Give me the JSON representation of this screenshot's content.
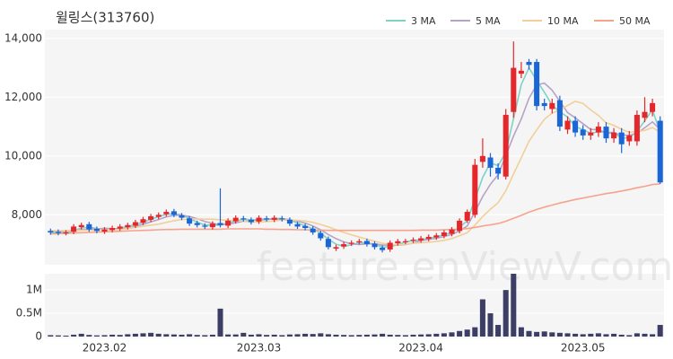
{
  "chart_data": [
    {
      "type": "candlestick",
      "title": "윌링스(313760)",
      "watermark": "feature.enViewV.com",
      "open": [
        7450,
        7420,
        7380,
        7420,
        7580,
        7680,
        7520,
        7430,
        7480,
        7530,
        7580,
        7630,
        7730,
        7830,
        7930,
        8020,
        8120,
        7980,
        7880,
        7720,
        7630,
        7580,
        7720,
        7630,
        7780,
        7880,
        7830,
        7770,
        7880,
        7830,
        7880,
        7830,
        7680,
        7620,
        7530,
        7380,
        7180,
        6850,
        6920,
        7020,
        7070,
        7110,
        7020,
        6880,
        6820,
        7030,
        7080,
        7120,
        7130,
        7180,
        7230,
        7280,
        7350,
        7450,
        7800,
        8000,
        9800,
        9950,
        9600,
        9300,
        11500,
        12800,
        13200,
        13200,
        11800,
        11600,
        11900,
        10900,
        11200,
        10900,
        10700,
        10800,
        11000,
        10600,
        10800,
        10500,
        10500,
        11300,
        11500,
        11200
      ],
      "high": [
        7530,
        7500,
        7480,
        7680,
        7730,
        7760,
        7600,
        7580,
        7630,
        7680,
        7730,
        7830,
        7930,
        8030,
        8080,
        8180,
        8200,
        8060,
        7960,
        7800,
        7710,
        7780,
        8900,
        7880,
        7980,
        7960,
        7910,
        7980,
        7960,
        7980,
        7960,
        7910,
        7760,
        7700,
        7610,
        7460,
        7260,
        6980,
        7080,
        7130,
        7180,
        7190,
        7100,
        6960,
        7130,
        7180,
        7180,
        7230,
        7280,
        7330,
        7380,
        7480,
        7580,
        7880,
        8180,
        9900,
        10600,
        10100,
        9750,
        11600,
        13900,
        13200,
        13300,
        13300,
        11950,
        11950,
        12050,
        11350,
        11350,
        11050,
        10950,
        11150,
        11150,
        10950,
        10950,
        10850,
        11550,
        12000,
        11950,
        11350
      ],
      "low": [
        7320,
        7300,
        7300,
        7340,
        7500,
        7420,
        7370,
        7350,
        7400,
        7450,
        7500,
        7550,
        7650,
        7750,
        7850,
        7940,
        7920,
        7820,
        7620,
        7570,
        7520,
        7500,
        7570,
        7550,
        7700,
        7770,
        7670,
        7690,
        7770,
        7750,
        7770,
        7620,
        7520,
        7470,
        7320,
        7120,
        6820,
        6770,
        6840,
        6940,
        6990,
        6920,
        6820,
        6720,
        6740,
        6950,
        7000,
        7040,
        7050,
        7100,
        7150,
        7200,
        7270,
        7370,
        7720,
        7900,
        9600,
        9300,
        9200,
        9200,
        11300,
        12650,
        12950,
        11550,
        11550,
        11450,
        10850,
        10750,
        10650,
        10550,
        10550,
        10650,
        10450,
        10450,
        10100,
        10350,
        10350,
        11150,
        11350,
        9050
      ],
      "close": [
        7400,
        7380,
        7400,
        7600,
        7650,
        7500,
        7450,
        7500,
        7550,
        7600,
        7650,
        7750,
        7850,
        7950,
        8000,
        8100,
        8000,
        7900,
        7700,
        7650,
        7600,
        7700,
        7650,
        7800,
        7900,
        7850,
        7750,
        7900,
        7850,
        7900,
        7850,
        7700,
        7600,
        7550,
        7400,
        7200,
        6900,
        6900,
        7000,
        7050,
        7100,
        7000,
        6900,
        6800,
        7050,
        7100,
        7100,
        7150,
        7200,
        7250,
        7300,
        7400,
        7500,
        7800,
        8100,
        9700,
        10000,
        9600,
        9400,
        11400,
        13000,
        12900,
        13100,
        11700,
        11700,
        11800,
        11000,
        11200,
        10800,
        10700,
        10800,
        11000,
        10600,
        10800,
        10400,
        10700,
        11400,
        11500,
        11800,
        9100
      ],
      "up_color": "#e5262b",
      "down_color": "#1a66d6",
      "series": [
        {
          "name": "3 MA",
          "color": "#7dd3c8",
          "values": [
            7400,
            7390,
            7390,
            7460,
            7550,
            7580,
            7530,
            7480,
            7500,
            7550,
            7600,
            7670,
            7750,
            7850,
            7930,
            8020,
            8030,
            8000,
            7870,
            7750,
            7650,
            7650,
            7650,
            7720,
            7780,
            7850,
            7830,
            7830,
            7830,
            7880,
            7870,
            7820,
            7720,
            7620,
            7520,
            7380,
            7170,
            7000,
            6930,
            6980,
            7050,
            7050,
            7000,
            6900,
            6920,
            6980,
            7080,
            7120,
            7150,
            7200,
            7250,
            7320,
            7400,
            7570,
            7800,
            8530,
            9270,
            9770,
            9670,
            10130,
            11270,
            12430,
            13000,
            12570,
            12170,
            11730,
            11500,
            11330,
            11000,
            10900,
            10770,
            10830,
            10800,
            10800,
            10600,
            10630,
            10830,
            11200,
            11570,
            10800
          ]
        },
        {
          "name": "5 MA",
          "color": "#b5a3c8",
          "values": [
            7450,
            7440,
            7440,
            7460,
            7490,
            7510,
            7520,
            7540,
            7530,
            7520,
            7550,
            7610,
            7680,
            7760,
            7840,
            7930,
            7980,
            7990,
            7940,
            7870,
            7770,
            7710,
            7660,
            7680,
            7730,
            7780,
            7790,
            7840,
            7850,
            7850,
            7850,
            7840,
            7780,
            7720,
            7620,
            7490,
            7330,
            7190,
            7080,
            7010,
            6990,
            7010,
            7010,
            6970,
            6970,
            6970,
            6990,
            7040,
            7120,
            7160,
            7200,
            7260,
            7330,
            7450,
            7620,
            8100,
            8620,
            9040,
            9360,
            10020,
            10680,
            11260,
            11960,
            12420,
            12480,
            12240,
            11860,
            11480,
            11300,
            11100,
            10900,
            10900,
            10780,
            10780,
            10720,
            10700,
            10780,
            10960,
            11160,
            10900
          ]
        },
        {
          "name": "10 MA",
          "color": "#f2cf98",
          "values": [
            7460,
            7460,
            7460,
            7470,
            7470,
            7480,
            7480,
            7490,
            7490,
            7500,
            7530,
            7570,
            7610,
            7650,
            7680,
            7740,
            7800,
            7840,
            7850,
            7860,
            7850,
            7850,
            7830,
            7810,
            7800,
            7780,
            7750,
            7750,
            7770,
            7790,
            7820,
            7820,
            7810,
            7790,
            7740,
            7670,
            7590,
            7490,
            7400,
            7320,
            7240,
            7170,
            7100,
            7030,
            6990,
            6980,
            7000,
            7030,
            7050,
            7070,
            7090,
            7130,
            7190,
            7290,
            7390,
            7650,
            7940,
            8190,
            8410,
            8820,
            9390,
            9940,
            10500,
            10890,
            11250,
            11460,
            11560,
            11720,
            11860,
            11790,
            11570,
            11380,
            11130,
            11040,
            10910,
            10800,
            10840,
            10870,
            10970,
            10810
          ]
        },
        {
          "name": "50 MA",
          "color": "#f5a38d",
          "values": [
            7350,
            7360,
            7370,
            7380,
            7390,
            7400,
            7410,
            7420,
            7430,
            7440,
            7450,
            7460,
            7470,
            7480,
            7490,
            7500,
            7500,
            7510,
            7510,
            7510,
            7510,
            7510,
            7510,
            7520,
            7520,
            7520,
            7520,
            7520,
            7510,
            7510,
            7500,
            7500,
            7490,
            7490,
            7480,
            7480,
            7470,
            7470,
            7470,
            7470,
            7470,
            7470,
            7470,
            7470,
            7470,
            7470,
            7470,
            7470,
            7480,
            7480,
            7480,
            7490,
            7500,
            7510,
            7530,
            7570,
            7620,
            7660,
            7700,
            7780,
            7880,
            7980,
            8090,
            8180,
            8260,
            8330,
            8400,
            8460,
            8520,
            8570,
            8620,
            8670,
            8720,
            8760,
            8810,
            8860,
            8920,
            8970,
            9030,
            9050
          ]
        }
      ],
      "ylim": [
        6300,
        14300
      ],
      "yticks": [
        {
          "value": 8000,
          "label": "8,000"
        },
        {
          "value": 10000,
          "label": "10,000"
        },
        {
          "value": 12000,
          "label": "12,000"
        },
        {
          "value": 14000,
          "label": "14,000"
        }
      ],
      "grid": true,
      "legend": "top-right"
    },
    {
      "type": "bar",
      "color": "#3c3e66",
      "categories": [
        null,
        null,
        null,
        null,
        null,
        null,
        null,
        "2023.02",
        null,
        null,
        null,
        null,
        null,
        null,
        null,
        null,
        null,
        null,
        null,
        null,
        null,
        null,
        null,
        null,
        null,
        null,
        null,
        "2023.03",
        null,
        null,
        null,
        null,
        null,
        null,
        null,
        null,
        null,
        null,
        null,
        null,
        null,
        null,
        null,
        null,
        null,
        null,
        null,
        null,
        "2023.04",
        null,
        null,
        null,
        null,
        null,
        null,
        null,
        null,
        null,
        null,
        null,
        null,
        null,
        null,
        null,
        null,
        null,
        null,
        null,
        null,
        "2023.05",
        null,
        null,
        null,
        null,
        null,
        null,
        null,
        null,
        null,
        null
      ],
      "values": [
        30000,
        25000,
        20000,
        40000,
        60000,
        35000,
        25000,
        30000,
        40000,
        35000,
        50000,
        60000,
        70000,
        80000,
        60000,
        50000,
        45000,
        40000,
        50000,
        35000,
        30000,
        40000,
        600000,
        45000,
        45000,
        80000,
        40000,
        50000,
        35000,
        40000,
        30000,
        45000,
        50000,
        60000,
        55000,
        70000,
        50000,
        40000,
        35000,
        30000,
        35000,
        40000,
        45000,
        60000,
        40000,
        35000,
        30000,
        40000,
        45000,
        50000,
        60000,
        70000,
        90000,
        120000,
        150000,
        200000,
        800000,
        500000,
        250000,
        1000000,
        1350000,
        200000,
        120000,
        100000,
        110000,
        90000,
        80000,
        70000,
        60000,
        50000,
        60000,
        70000,
        50000,
        60000,
        40000,
        30000,
        70000,
        60000,
        50000,
        250000
      ],
      "ylim": [
        0,
        1350000
      ],
      "yticks": [
        0,
        {
          "value": 500000,
          "label": "0.5M"
        },
        {
          "value": 1000000,
          "label": "1M"
        }
      ]
    }
  ]
}
